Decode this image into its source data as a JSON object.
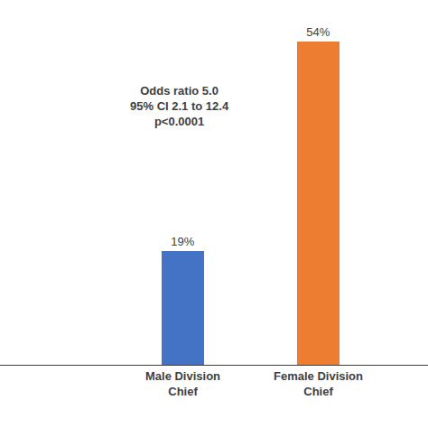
{
  "chart_data": {
    "type": "bar",
    "categories": [
      "Male Division Chief",
      "Female Division Chief"
    ],
    "values": [
      19,
      54
    ],
    "value_labels": [
      "19%",
      "54%"
    ],
    "colors": [
      "#4472c4",
      "#ed7d31"
    ],
    "data_labels": true,
    "annotation": [
      "Odds ratio 5.0",
      "95% CI 2.1 to 12.4",
      "p<0.0001"
    ],
    "ylim": [
      0,
      58
    ],
    "grid": false,
    "tick_labels": "x"
  }
}
